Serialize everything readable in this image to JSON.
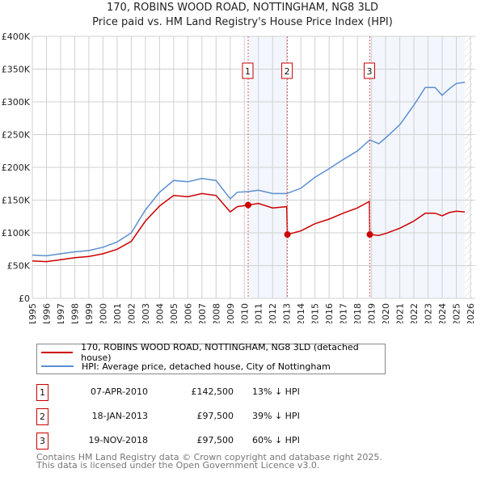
{
  "chart_data": {
    "type": "line",
    "title": "170, ROBINS WOOD ROAD, NOTTINGHAM, NG8 3LD",
    "subtitle": "Price paid vs. HM Land Registry's House Price Index (HPI)",
    "xlim": [
      1995,
      2026
    ],
    "ylim": [
      0,
      400000
    ],
    "x_ticks": [
      "1995",
      "1996",
      "1997",
      "1998",
      "1999",
      "2000",
      "2001",
      "2002",
      "2003",
      "2004",
      "2005",
      "2006",
      "2007",
      "2008",
      "2009",
      "2010",
      "2011",
      "2012",
      "2013",
      "2014",
      "2015",
      "2016",
      "2017",
      "2018",
      "2019",
      "2020",
      "2021",
      "2022",
      "2023",
      "2024",
      "2025",
      "2026"
    ],
    "y_ticks": [
      {
        "v": 0,
        "label": "£0"
      },
      {
        "v": 50000,
        "label": "£50K"
      },
      {
        "v": 100000,
        "label": "£100K"
      },
      {
        "v": 150000,
        "label": "£150K"
      },
      {
        "v": 200000,
        "label": "£200K"
      },
      {
        "v": 250000,
        "label": "£250K"
      },
      {
        "v": 300000,
        "label": "£300K"
      },
      {
        "v": 350000,
        "label": "£350K"
      },
      {
        "v": 400000,
        "label": "£400K"
      }
    ],
    "grid": true,
    "legend_placement": "below",
    "shaded_ranges": [
      [
        2010.27,
        2013.05
      ],
      [
        2018.88,
        2025.6
      ]
    ],
    "hatch_from": 2025.6,
    "series": [
      {
        "name": "170, ROBINS WOOD ROAD, NOTTINGHAM, NG8 3LD (detached house)",
        "color": "#cc0000",
        "x": [
          1995,
          1996,
          1997,
          1998,
          1999,
          2000,
          2001,
          2002,
          2003,
          2004,
          2005,
          2006,
          2007,
          2008,
          2009,
          2009.5,
          2010.27,
          2011,
          2012,
          2013,
          2013.05,
          2014,
          2015,
          2016,
          2017,
          2018,
          2018.85,
          2018.88,
          2019.5,
          2020,
          2021,
          2022,
          2022.8,
          2023.5,
          2024,
          2024.5,
          2025,
          2025.6
        ],
        "y": [
          57000,
          56000,
          59000,
          62000,
          64000,
          68000,
          75000,
          87000,
          118000,
          141000,
          157000,
          155000,
          160000,
          157000,
          132000,
          140000,
          142500,
          145000,
          138000,
          140000,
          97500,
          103000,
          114000,
          121000,
          130000,
          138000,
          148000,
          97500,
          96000,
          99000,
          107000,
          118000,
          130000,
          130000,
          126000,
          131000,
          133000,
          132000
        ]
      },
      {
        "name": "HPI: Average price, detached house, City of Nottingham",
        "color": "#5b8fd0",
        "x": [
          1995,
          1996,
          1997,
          1998,
          1999,
          2000,
          2001,
          2002,
          2003,
          2004,
          2005,
          2006,
          2007,
          2008,
          2009,
          2009.5,
          2010.27,
          2011,
          2012,
          2013,
          2014,
          2015,
          2016,
          2017,
          2018,
          2018.88,
          2019.5,
          2020,
          2021,
          2022,
          2022.8,
          2023.5,
          2024,
          2024.5,
          2025,
          2025.6
        ],
        "y": [
          66000,
          65000,
          68000,
          71000,
          73000,
          78000,
          86000,
          100000,
          135000,
          162000,
          180000,
          178000,
          183000,
          180000,
          152000,
          162000,
          163000,
          165000,
          160000,
          160000,
          168000,
          185000,
          198000,
          212000,
          225000,
          242000,
          236000,
          245000,
          265000,
          295000,
          322000,
          322000,
          310000,
          320000,
          328000,
          330000
        ]
      }
    ],
    "sales": [
      {
        "n": "1",
        "x": 2010.27,
        "y": 142500,
        "date": "07-APR-2010",
        "price": "£142,500",
        "hpi": "13% ↓ HPI"
      },
      {
        "n": "2",
        "x": 2013.05,
        "y": 97500,
        "date": "18-JAN-2013",
        "price": "£97,500",
        "hpi": "39% ↓ HPI"
      },
      {
        "n": "3",
        "x": 2018.88,
        "y": 97500,
        "date": "19-NOV-2018",
        "price": "£97,500",
        "hpi": "60% ↓ HPI"
      }
    ]
  },
  "footer": {
    "line1": "Contains HM Land Registry data © Crown copyright and database right 2025.",
    "line2": "This data is licensed under the Open Government Licence v3.0."
  }
}
